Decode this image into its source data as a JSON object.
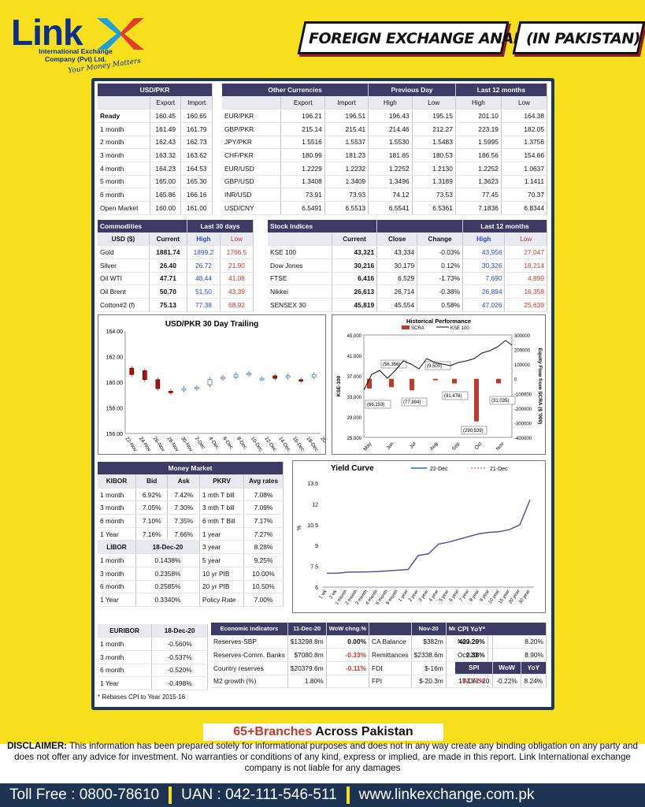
{
  "brand": {
    "name": "Link",
    "sub1": "International Exchange",
    "sub2": "Company (Pvt) Ltd.",
    "tagline": "Your Money Matters"
  },
  "banner": {
    "title": "FOREIGN EXCHANGE ANALYSIS",
    "region": "(IN PAKISTAN)"
  },
  "usd": {
    "title": "USD/PKR",
    "h_export": "Export",
    "h_import": "Import",
    "rows": [
      [
        "Ready",
        "160.45",
        "160.65"
      ],
      [
        "1 month",
        "161.49",
        "161.79"
      ],
      [
        "2 month",
        "162.43",
        "162.73"
      ],
      [
        "3 month",
        "163.32",
        "163.62"
      ],
      [
        "4 month",
        "164.23",
        "164.53"
      ],
      [
        "5 month",
        "165.00",
        "165.30"
      ],
      [
        "6 month",
        "165.86",
        "166.16"
      ],
      [
        "Open Market",
        "160.00",
        "161.00"
      ]
    ]
  },
  "other": {
    "title": "Other Currencies",
    "prev": "Previous Day",
    "last12": "Last 12 months",
    "h": [
      "Export",
      "Import",
      "High",
      "Low",
      "High",
      "Low"
    ],
    "rows": [
      [
        "EUR/PKR",
        "196.21",
        "196.51",
        "196.43",
        "195.15",
        "201.10",
        "164.38"
      ],
      [
        "GBP/PKR",
        "215.14",
        "215.41",
        "214.46",
        "212.27",
        "223.19",
        "182.05"
      ],
      [
        "JPY/PKR",
        "1.5516",
        "1.5537",
        "1.5530",
        "1.5483",
        "1.5995",
        "1.3756"
      ],
      [
        "CHF/PKR",
        "180.99",
        "181.23",
        "181.65",
        "180.53",
        "186.56",
        "154.66"
      ],
      [
        "EUR/USD",
        "1.2229",
        "1.2232",
        "1.2252",
        "1.2130",
        "1.2252",
        "1.0637"
      ],
      [
        "GBP/USD",
        "1.3408",
        "1.3409",
        "1.3496",
        "1.3189",
        "1.3623",
        "1.1411"
      ],
      [
        "INR/USD",
        "73.91",
        "73.93",
        "74.12",
        "73.53",
        "77.45",
        "70.37"
      ],
      [
        "USD/CNY",
        "6.5491",
        "6.5513",
        "6.5541",
        "6.5361",
        "7.1836",
        "6.8344"
      ]
    ]
  },
  "commodities": {
    "title": "Commodities",
    "last30": "Last 30 days",
    "h": [
      "USD ($)",
      "Current",
      "High",
      "Low"
    ],
    "rows": [
      [
        "Gold",
        "1881.74",
        "1899.2",
        "1766.5"
      ],
      [
        "Silver",
        "26.40",
        "26.72",
        "21.90"
      ],
      [
        "Oil WTI",
        "47.71",
        "48.44",
        "41.08"
      ],
      [
        "Oil Brent",
        "50.70",
        "51.50",
        "43.39"
      ],
      [
        "Cotton#2 (f)",
        "75.13",
        "77.38",
        "68.92"
      ]
    ]
  },
  "stocks": {
    "title": "Stock Indices",
    "last12": "Last 12 months",
    "h": [
      "Current",
      "Close",
      "Change",
      "High",
      "Low"
    ],
    "rows": [
      [
        "KSE 100",
        "43,321",
        "43,334",
        "-0.03%",
        "43,956",
        "27,047"
      ],
      [
        "Dow Jones",
        "30,216",
        "30,179",
        "0.12%",
        "30,326",
        "18,214"
      ],
      [
        "FTSE",
        "6,416",
        "6,529",
        "-1.73%",
        "7,690",
        "4,899"
      ],
      [
        "Nikkei",
        "26,613",
        "26,714",
        "-0.38%",
        "26,894",
        "16,358"
      ],
      [
        "SENSEX 30",
        "45,819",
        "45,554",
        "0.58%",
        "47,026",
        "25,639"
      ]
    ]
  },
  "chart_data": [
    {
      "type": "candlestick",
      "title": "USD/PKR 30 Day Trailing",
      "categories": [
        "22-Nov",
        "24-Nov",
        "26-Nov",
        "28-Nov",
        "30-Nov",
        "2-Dec",
        "4-Dec",
        "6-Dec",
        "8-Dec",
        "10-Dec",
        "12-Dec",
        "14-Dec",
        "16-Dec",
        "18-Dec",
        "20-Dec"
      ],
      "yticks": [
        "164.00",
        "162.00",
        "160.00",
        "158.00",
        "156.00"
      ],
      "ylim": [
        156,
        164
      ],
      "candles": [
        [
          161.1,
          160.6
        ],
        [
          160.9,
          160.2
        ],
        [
          160.2,
          159.5
        ],
        [
          159.3,
          159.2
        ],
        [
          159.4,
          159.5
        ],
        [
          159.5,
          159.6
        ],
        [
          159.8,
          160.2
        ],
        [
          160.3,
          160.4
        ],
        [
          160.4,
          160.6
        ],
        [
          160.6,
          160.7
        ],
        [
          160.3,
          160.3
        ],
        [
          160.5,
          160.3
        ],
        [
          160.4,
          160.5
        ],
        [
          160.2,
          160.1
        ],
        [
          160.4,
          160.6
        ]
      ]
    },
    {
      "type": "bar+line",
      "title": "Historical Performance",
      "legend": [
        "SCRA",
        "KSE 100"
      ],
      "xlabel": "",
      "ylabel": "KSE-100",
      "y2label": "Equity Flow from SCRA ($ '000)",
      "xticks": [
        "May",
        "Jun",
        "Jul",
        "Aug",
        "Sep",
        "Oct",
        "Nov"
      ],
      "yticks": [
        "45,000",
        "41,000",
        "37,000",
        "33,000",
        "29,000",
        "25,000"
      ],
      "y2ticks": [
        "300000",
        "200000",
        "100000",
        "0",
        "-100000",
        "-200000",
        "-300000",
        "-400000"
      ],
      "bar_labels": [
        "(66,153)",
        "(56,356)",
        "(77,894)",
        "(9,500)",
        "(31,478)",
        "(290,539)",
        "(31,035)"
      ],
      "bars": [
        -66153,
        -56356,
        -77894,
        -9500,
        -31478,
        -290539,
        -31035
      ]
    },
    {
      "type": "line",
      "title": "Yield Curve",
      "legend": [
        "22-Dec",
        "21-Dec"
      ],
      "ylabel": "%",
      "categories": [
        "1 wk",
        "2 wk",
        "1 month",
        "2 month",
        "3 month",
        "4 month",
        "6 month",
        "9 month",
        "1 year",
        "2 year",
        "3 year",
        "4 year",
        "5 year",
        "6 year",
        "7 year",
        "8 year",
        "9 year",
        "10 year",
        "15 year",
        "20 year",
        "30 year"
      ],
      "yticks": [
        "13.5",
        "12",
        "10.5",
        "9",
        "7.5",
        "6"
      ],
      "values": [
        7.0,
        7.0,
        7.08,
        7.09,
        7.1,
        7.12,
        7.17,
        7.22,
        7.27,
        8.28,
        8.4,
        9.1,
        9.25,
        9.45,
        9.65,
        9.85,
        9.95,
        10.0,
        10.15,
        10.5,
        12.3
      ]
    }
  ],
  "money": {
    "title": "Money Market",
    "kibor_h": [
      "KIBOR",
      "Bid",
      "Ask"
    ],
    "kibor": [
      [
        "1 month",
        "6.92%",
        "7.42%"
      ],
      [
        "3 month",
        "7.05%",
        "7.30%"
      ],
      [
        "6 month",
        "7.10%",
        "7.35%"
      ],
      [
        "1 Year",
        "7.16%",
        "7.66%"
      ]
    ],
    "libor_h": [
      "LIBOR",
      "18-Dec-20"
    ],
    "libor": [
      [
        "1 month",
        "0.1438%"
      ],
      [
        "3 month",
        "0.2358%"
      ],
      [
        "6 month",
        "0.2585%"
      ],
      [
        "1 Year",
        "0.3340%"
      ]
    ],
    "pkrv_h": [
      "PKRV",
      "Avg rates"
    ],
    "pkrv": [
      [
        "1 mth T bill",
        "7.08%"
      ],
      [
        "3 mth T bill",
        "7.09%"
      ],
      [
        "6 mth T Bill",
        "7.17%"
      ],
      [
        "1 year",
        "7.27%"
      ],
      [
        "3 year",
        "8.28%"
      ],
      [
        "5 year",
        "9.25%"
      ],
      [
        "10 yr PIB",
        "10.00%"
      ],
      [
        "20 yr PIB",
        "10.50%"
      ],
      [
        "Policy Rate",
        "7.00%"
      ]
    ]
  },
  "euribor": {
    "h": [
      "EURIBOR",
      "18-Dec-20"
    ],
    "rows": [
      [
        "1 month",
        "-0.560%"
      ],
      [
        "3 month",
        "-0.537%"
      ],
      [
        "6 month",
        "-0.520%"
      ],
      [
        "1 Year",
        "-0.498%"
      ]
    ],
    "note": "* Rebases CPI to Year 2015-16"
  },
  "econ": {
    "h": [
      "Economic Indicators",
      "11-Dec-20",
      "WoW chng.%",
      "",
      "Nov-20",
      "MoM chng.%"
    ],
    "rows": [
      [
        "Reserves-SBP",
        "$13298.8m",
        "0.00%",
        "CA Balance",
        "$382m",
        "423.29%"
      ],
      [
        "Reserves-Comm. Banks",
        "$7080.8m",
        "-0.33%",
        "Remittances",
        "$2338.6m",
        "2.38%"
      ],
      [
        "Country reserves",
        "$20379.6m",
        "-0.11%",
        "FDI",
        "$-16m",
        "-105.04%"
      ],
      [
        "M2 growth (%)",
        "1.80%",
        "",
        "FPI",
        "$-20.3m",
        "-92.77%"
      ]
    ]
  },
  "cpi": {
    "h": "CPI YoY*",
    "rows": [
      [
        "Nov-20",
        "8.20%"
      ],
      [
        "Oct-20",
        "8.90%"
      ]
    ],
    "h2": [
      "SPI",
      "WoW",
      "YoY"
    ],
    "row2": [
      "17-Dec-20",
      "-0.22%",
      "8.24%"
    ]
  },
  "branches": {
    "bold": "65+Branches",
    "rest": " Across Pakistan"
  },
  "disclaimer": {
    "lead": "DISCLAIMER:",
    "text": " This information has been prepared solely for informational purposes and does not in any way create any binding obligation on any party and does not offer any advice for investment. No warranties or conditions of any kind, express or implied, are made in this report. Link International exchange company is not liable for any damages"
  },
  "footer": {
    "toll": "Toll Free : 0800-78610",
    "uan": "UAN : 042-111-546-511",
    "web": "www.linkexchange.com.pk"
  },
  "colors": {
    "panel_border": "#1b3a5b",
    "header": "#3d3a66",
    "bg": "#f7df1e",
    "footer": "#1d3353"
  }
}
